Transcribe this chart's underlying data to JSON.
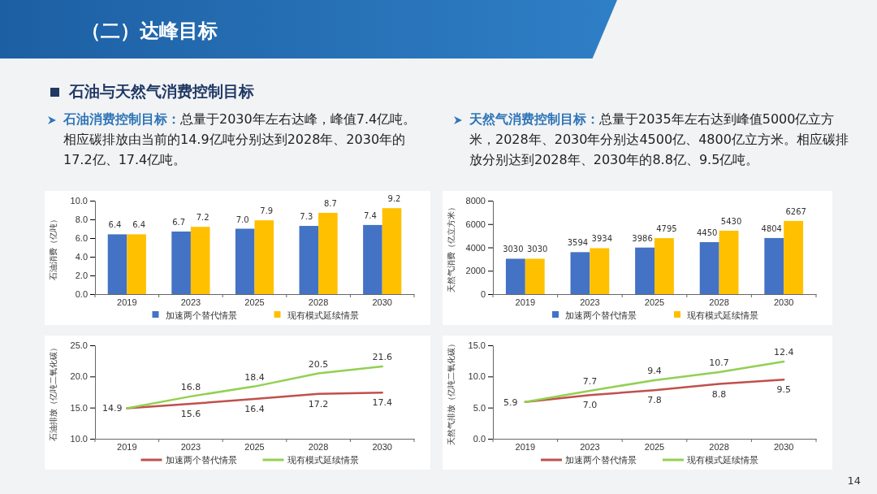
{
  "chart_data": [
    {
      "type": "bar",
      "title": "（二）达峰目标",
      "subtitle": "石油与天然气消费控制目标",
      "annotations": [
        "石油消费控制目标：",
        "总量于2030年左右达峰，峰值7.4亿吨。相应碳排放由当前的14.9亿吨分别达到2028年、2030年的17.2亿、17.4亿吨。"
      ],
      "ylabel": "石油消费（亿吨）",
      "categories": [
        "2019",
        "2023",
        "2025",
        "2028",
        "2030"
      ],
      "series": [
        {
          "name": "加速两个替代情景",
          "color": "#4472c4",
          "values": [
            6.4,
            6.7,
            7.0,
            7.3,
            7.4
          ],
          "value_labels": [
            "6.4",
            "6.7",
            "7.0",
            "7.3",
            "7.4"
          ]
        },
        {
          "name": "现有模式延续情景",
          "color": "#ffc000",
          "values": [
            6.4,
            7.2,
            7.9,
            8.7,
            9.2
          ],
          "value_labels": [
            "6.4",
            "7.2",
            "7.9",
            "8.7",
            "9.2"
          ]
        }
      ],
      "ylim": [
        0,
        10
      ],
      "yticks": [
        {
          "value": 0,
          "label": "0.0"
        },
        {
          "value": 2,
          "label": "2.0"
        },
        {
          "value": 4,
          "label": "4.0"
        },
        {
          "value": 6,
          "label": "6.0"
        },
        {
          "value": 8,
          "label": "8.0"
        },
        {
          "value": 10,
          "label": "10.0"
        }
      ],
      "legend": "bottom",
      "grid": false
    },
    {
      "type": "bar",
      "annotations": [
        "天然气消费控制目标：",
        "总量于2035年左右达到峰值5000亿立方米，2028年、2030年分别达4500亿、4800亿立方米。相应碳排放分别达到2028年、2030年的8.8亿、9.5亿吨。"
      ],
      "ylabel": "天然气消费（亿立方米）",
      "categories": [
        "2019",
        "2023",
        "2025",
        "2028",
        "2030"
      ],
      "series": [
        {
          "name": "加速两个替代情景",
          "color": "#4472c4",
          "values": [
            3030,
            3594,
            3986,
            4450,
            4804
          ]
        },
        {
          "name": "现有模式延续情景",
          "color": "#ffc000",
          "values": [
            3030,
            3934,
            4795,
            5430,
            6267
          ]
        }
      ],
      "ylim": [
        0,
        8000
      ],
      "yticks": [
        0,
        2000,
        4000,
        6000,
        8000
      ],
      "data_labels": true,
      "legend": "bottom",
      "grid": false
    },
    {
      "type": "line",
      "ylabel": "石油排放（亿吨二氧化碳）",
      "categories": [
        "2019",
        "2023",
        "2025",
        "2028",
        "2030"
      ],
      "series": [
        {
          "name": "加速两个替代情景",
          "color": "#c0504d",
          "values": [
            14.9,
            15.6,
            16.4,
            17.2,
            17.4
          ],
          "value_labels": [
            "14.9",
            "15.6",
            "16.4",
            "17.2",
            "17.4"
          ]
        },
        {
          "name": "现有模式延续情景",
          "color": "#92d050",
          "values": [
            14.9,
            16.8,
            18.4,
            20.5,
            21.6
          ],
          "value_labels": [
            null,
            "16.8",
            "18.4",
            "20.5",
            "21.6"
          ]
        }
      ],
      "ylim": [
        10,
        25
      ],
      "yticks": [
        {
          "value": 10,
          "label": "10.0"
        },
        {
          "value": 15,
          "label": "15.0"
        },
        {
          "value": 20,
          "label": "20.0"
        },
        {
          "value": 25,
          "label": "25.0"
        }
      ],
      "legend": "bottom",
      "grid": false,
      "marker": "none"
    },
    {
      "type": "line",
      "ylabel": "天然气排放（亿吨二氧化碳）",
      "annotations": [
        "14"
      ],
      "categories": [
        "2019",
        "2023",
        "2025",
        "2028",
        "2030"
      ],
      "series": [
        {
          "name": "加速两个替代情景",
          "color": "#c0504d",
          "values": [
            5.9,
            7.0,
            7.8,
            8.8,
            9.5
          ],
          "value_labels": [
            "5.9",
            "7.0",
            "7.8",
            "8.8",
            "9.5"
          ]
        },
        {
          "name": "现有模式延续情景",
          "color": "#92d050",
          "values": [
            5.9,
            7.7,
            9.4,
            10.7,
            12.4
          ],
          "value_labels": [
            null,
            "7.7",
            "9.4",
            "10.7",
            "12.4"
          ]
        }
      ],
      "ylim": [
        0,
        15
      ],
      "yticks": [
        {
          "value": 0,
          "label": "0.0"
        },
        {
          "value": 5,
          "label": "5.0"
        },
        {
          "value": 10,
          "label": "10.0"
        },
        {
          "value": 15,
          "label": "15.0"
        }
      ],
      "legend": "bottom",
      "grid": false,
      "marker": "none"
    }
  ]
}
